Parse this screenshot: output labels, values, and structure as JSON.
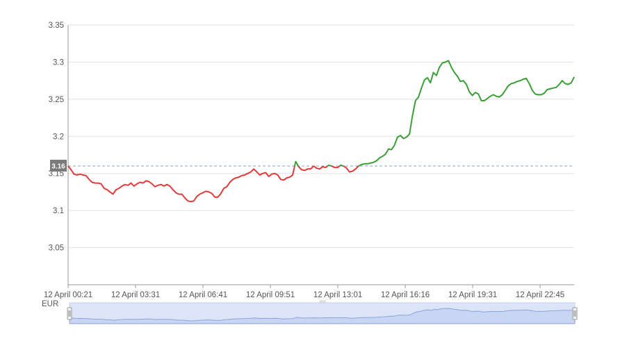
{
  "chart_data": {
    "type": "line",
    "xlabel": "",
    "ylabel": "EUR",
    "ylim": [
      3.0,
      3.35
    ],
    "y_ticks": [
      "3.05",
      "3.1",
      "3.15",
      "3.2",
      "3.25",
      "3.3",
      "3.35"
    ],
    "y_tick_values": [
      3.05,
      3.1,
      3.15,
      3.2,
      3.25,
      3.3,
      3.35
    ],
    "x_ticks": [
      "12 April 00:21",
      "12 April 03:31",
      "12 April 06:41",
      "12 April 09:51",
      "12 April 13:01",
      "12 April 16:16",
      "12 April 19:31",
      "12 April 22:45"
    ],
    "reference_value": 3.16,
    "reference_label": "3.16",
    "grid": true,
    "series": [
      {
        "values": [
          3.16,
          3.155,
          3.149,
          3.148,
          3.149,
          3.148,
          3.147,
          3.142,
          3.138,
          3.137,
          3.137,
          3.136,
          3.13,
          3.128,
          3.125,
          3.122,
          3.128,
          3.13,
          3.133,
          3.135,
          3.134,
          3.137,
          3.133,
          3.136,
          3.138,
          3.137,
          3.14,
          3.139,
          3.136,
          3.132,
          3.134,
          3.135,
          3.133,
          3.135,
          3.133,
          3.128,
          3.124,
          3.122,
          3.122,
          3.117,
          3.113,
          3.112,
          3.113,
          3.119,
          3.122,
          3.124,
          3.126,
          3.125,
          3.123,
          3.118,
          3.118,
          3.123,
          3.13,
          3.132,
          3.138,
          3.142,
          3.144,
          3.145,
          3.147,
          3.148,
          3.15,
          3.152,
          3.156,
          3.152,
          3.148,
          3.15,
          3.151,
          3.146,
          3.149,
          3.15,
          3.148,
          3.142,
          3.141,
          3.144,
          3.145,
          3.148,
          3.166,
          3.159,
          3.155,
          3.154,
          3.156,
          3.156,
          3.16,
          3.157,
          3.156,
          3.159,
          3.158,
          3.161,
          3.16,
          3.158,
          3.158,
          3.161,
          3.16,
          3.157,
          3.152,
          3.153,
          3.156,
          3.16,
          3.162,
          3.163,
          3.163,
          3.164,
          3.165,
          3.167,
          3.171,
          3.173,
          3.176,
          3.183,
          3.182,
          3.188,
          3.199,
          3.201,
          3.197,
          3.199,
          3.203,
          3.228,
          3.248,
          3.253,
          3.265,
          3.276,
          3.279,
          3.272,
          3.286,
          3.282,
          3.293,
          3.299,
          3.3,
          3.302,
          3.293,
          3.286,
          3.281,
          3.274,
          3.275,
          3.27,
          3.26,
          3.255,
          3.259,
          3.257,
          3.248,
          3.248,
          3.251,
          3.254,
          3.256,
          3.254,
          3.253,
          3.256,
          3.262,
          3.268,
          3.271,
          3.272,
          3.274,
          3.275,
          3.277,
          3.278,
          3.271,
          3.262,
          3.257,
          3.256,
          3.256,
          3.258,
          3.263,
          3.264,
          3.265,
          3.266,
          3.27,
          3.275,
          3.271,
          3.27,
          3.272,
          3.28
        ],
        "color_up": "#3a9e35",
        "color_down": "#e03a3a"
      }
    ],
    "colors": {
      "grid": "#e0e0e0",
      "axis": "#999999",
      "reference_line": "#7aa6c7",
      "reference_label_bg": "#7a7a7a",
      "navigator_fill": "#dce5f7",
      "navigator_line": "#8aa3d8",
      "navigator_handle": "#f4f4f4"
    }
  }
}
